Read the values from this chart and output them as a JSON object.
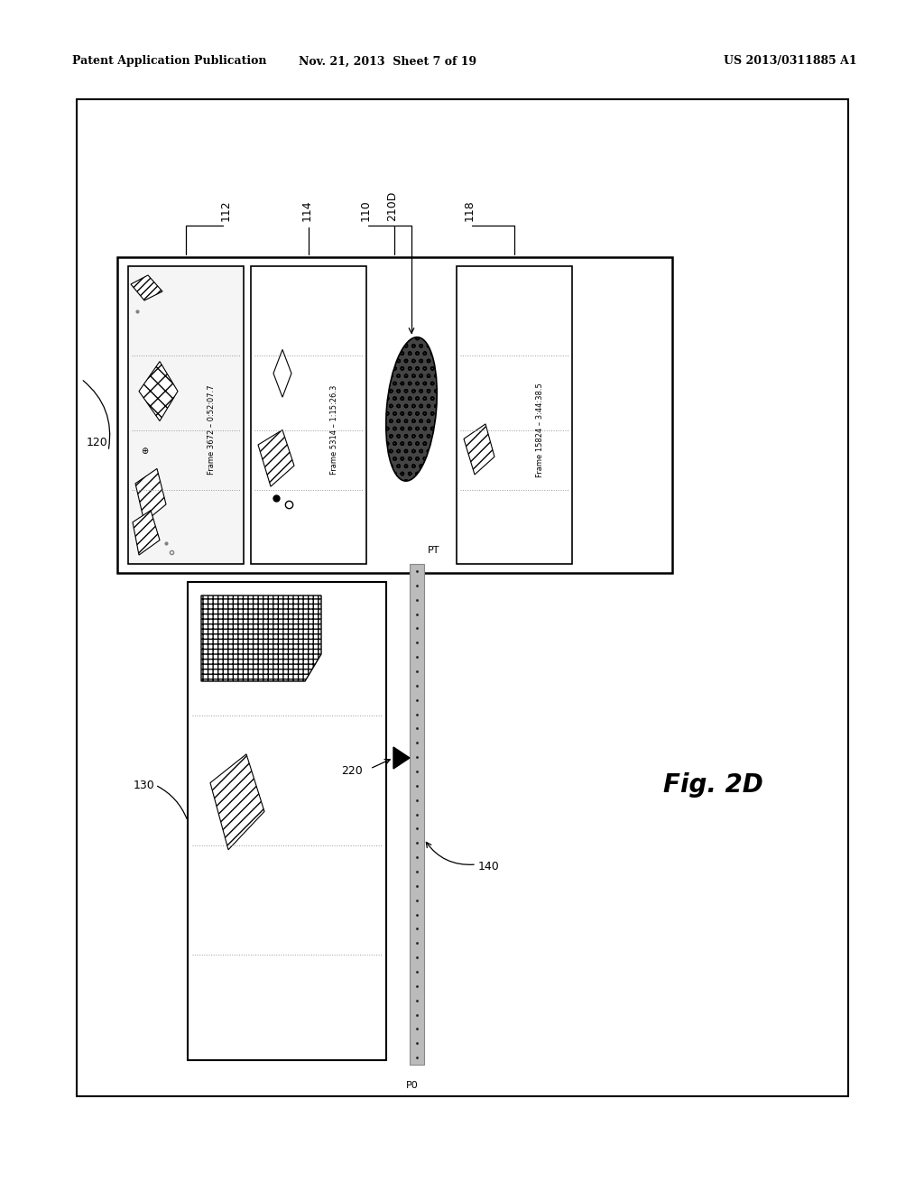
{
  "header_left": "Patent Application Publication",
  "header_mid": "Nov. 21, 2013  Sheet 7 of 19",
  "header_right": "US 2013/0311885 A1",
  "fig_label": "Fig. 2D",
  "bg_color": "#ffffff"
}
